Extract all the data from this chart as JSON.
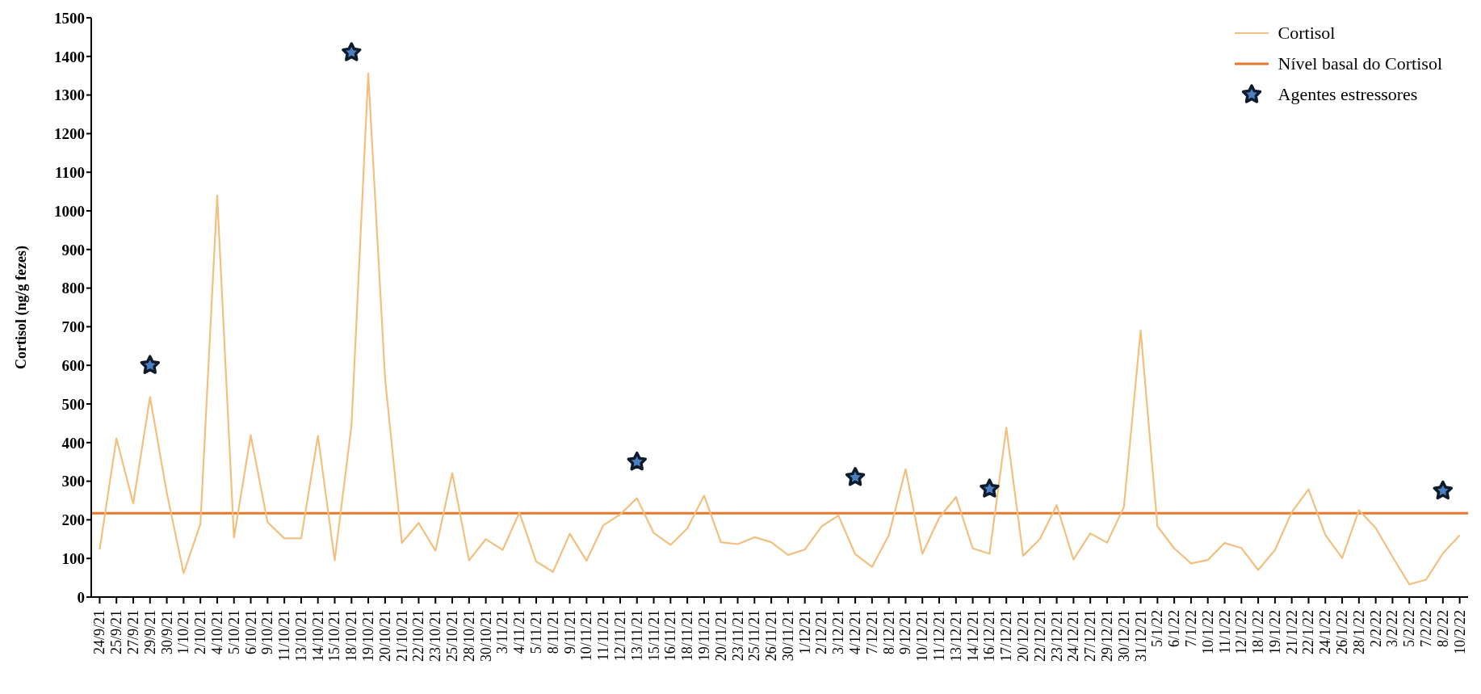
{
  "chart_data": {
    "type": "line",
    "ylabel": "Cortisol (ng/g fezes)",
    "categories": [
      "24/9/21",
      "25/9/21",
      "27/9/21",
      "29/9/21",
      "30/9/21",
      "1/10/21",
      "2/10/21",
      "4/10/21",
      "5/10/21",
      "6/10/21",
      "9/10/21",
      "11/10/21",
      "13/10/21",
      "14/10/21",
      "15/10/21",
      "18/10/21",
      "19/10/21",
      "20/10/21",
      "21/10/21",
      "22/10/21",
      "23/10/21",
      "25/10/21",
      "28/10/21",
      "30/10/21",
      "3/11/21",
      "4/11/21",
      "5/11/21",
      "8/11/21",
      "9/11/21",
      "10/11/21",
      "11/11/21",
      "12/11/21",
      "13/11/21",
      "15/11/21",
      "16/11/21",
      "18/11/21",
      "19/11/21",
      "20/11/21",
      "23/11/21",
      "25/11/21",
      "26/11/21",
      "30/11/21",
      "1/12/21",
      "2/12/21",
      "3/12/21",
      "4/12/21",
      "7/12/21",
      "8/12/21",
      "9/12/21",
      "10/12/21",
      "11/12/21",
      "13/12/21",
      "14/12/21",
      "16/12/21",
      "17/12/21",
      "20/12/21",
      "22/12/21",
      "23/12/21",
      "24/12/21",
      "27/12/21",
      "29/12/21",
      "30/12/21",
      "31/12/21",
      "5/1/22",
      "6/1/22",
      "7/1/22",
      "10/1/22",
      "11/1/22",
      "12/1/22",
      "18/1/22",
      "19/1/22",
      "21/1/22",
      "22/1/22",
      "24/1/22",
      "26/1/22",
      "28/1/22",
      "2/2/22",
      "3/2/22",
      "5/2/22",
      "7/2/22",
      "8/2/22",
      "10/2/22"
    ],
    "series": [
      {
        "name": "Cortisol",
        "color": "#f2bf7e",
        "marker": "none",
        "values": [
          123,
          411,
          242,
          518,
          270,
          62,
          189,
          1040,
          154,
          419,
          194,
          152,
          152,
          417,
          95,
          445,
          1356,
          565,
          140,
          192,
          120,
          321,
          95,
          150,
          122,
          219,
          92,
          65,
          164,
          94,
          186,
          214,
          256,
          166,
          135,
          178,
          263,
          142,
          137,
          155,
          142,
          109,
          123,
          183,
          211,
          111,
          78,
          160,
          331,
          112,
          205,
          259,
          126,
          112,
          438,
          107,
          150,
          238,
          97,
          165,
          141,
          233,
          690,
          183,
          126,
          87,
          96,
          140,
          127,
          70,
          122,
          220,
          279,
          161,
          101,
          225,
          179,
          104,
          33,
          45,
          113,
          160
        ]
      },
      {
        "name": "Agentes estressores",
        "type": "scatter",
        "color": "#4a7fc1",
        "marker": "star",
        "x": [
          "29/9/21",
          "18/10/21",
          "13/11/21",
          "4/12/21",
          "16/12/21",
          "8/2/22"
        ],
        "values": [
          600,
          1410,
          350,
          310,
          280,
          275
        ]
      }
    ],
    "ref_lines": [
      {
        "axis": "y",
        "value": 217,
        "label": "Nível basal do Cortisol",
        "color": "#e8772e"
      }
    ],
    "ylim": [
      0,
      1500
    ],
    "yticks": [
      0,
      100,
      200,
      300,
      400,
      500,
      600,
      700,
      800,
      900,
      1000,
      1100,
      1200,
      1300,
      1400,
      1500
    ],
    "grid": false,
    "legend": "top right"
  }
}
